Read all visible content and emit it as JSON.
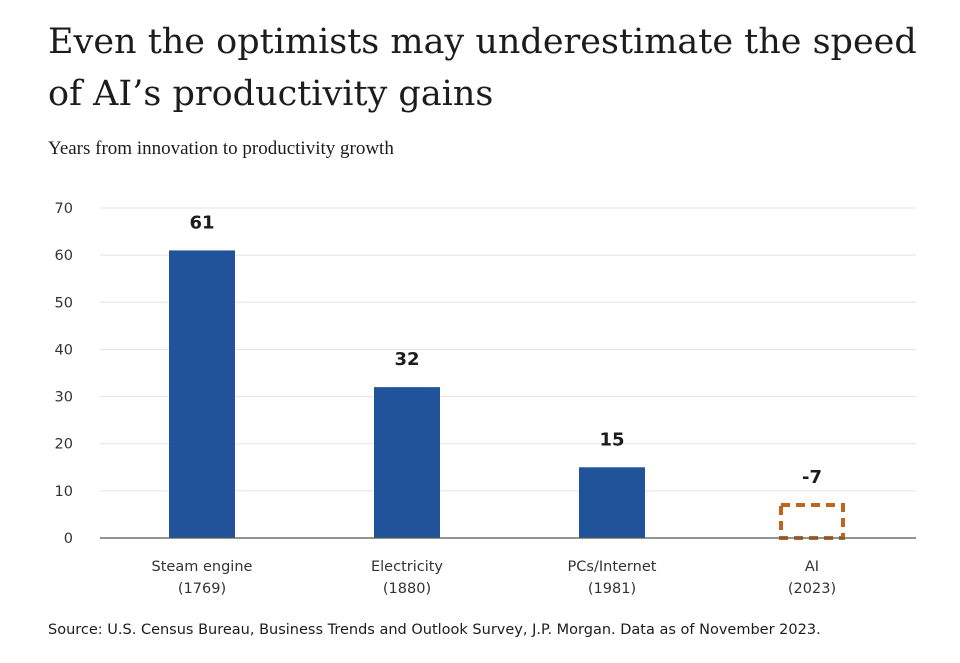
{
  "title": "Even the optimists may underestimate the speed of AI’s productivity gains",
  "chart_data": {
    "type": "bar",
    "title": "Even the optimists may underestimate the speed of AI’s productivity gains",
    "subtitle": "Years from innovation to productivity growth",
    "categories": [
      [
        "Steam engine",
        "(1769)"
      ],
      [
        "Electricity",
        "(1880)"
      ],
      [
        "PCs/Internet",
        "(1981)"
      ],
      [
        "AI",
        "(2023)"
      ]
    ],
    "values": [
      61,
      32,
      15,
      -7
    ],
    "value_labels": [
      "61",
      "32",
      "15",
      "-7"
    ],
    "bar_styles": [
      "solid",
      "solid",
      "solid",
      "dashed"
    ],
    "bar_color": "#20539a",
    "projected_color": "#c0651f",
    "ylim": [
      0,
      70
    ],
    "yticks": [
      0,
      10,
      20,
      30,
      40,
      50,
      60,
      70
    ],
    "grid": true,
    "xlabel": "",
    "ylabel": ""
  },
  "source": "Source: U.S. Census Bureau, Business Trends and Outlook Survey, J.P. Morgan. Data as of November 2023."
}
